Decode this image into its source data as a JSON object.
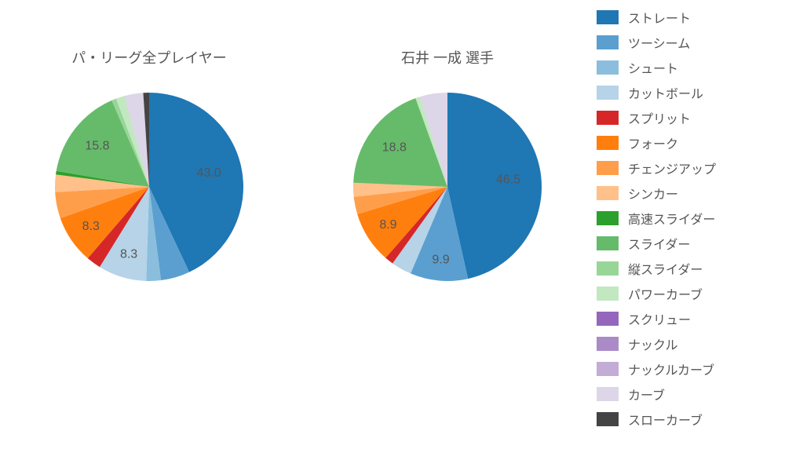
{
  "background_color": "#ffffff",
  "title_fontsize": 18,
  "title_color": "#555555",
  "label_fontsize": 16,
  "label_color": "#555555",
  "pie_radius": 120,
  "charts": [
    {
      "title": "パ・リーグ全プレイヤー",
      "slices": [
        {
          "category": "ストレート",
          "value": 43.0,
          "color": "#1f77b4",
          "show_label": true,
          "label_dist": 0.65
        },
        {
          "category": "ツーシーム",
          "value": 5.0,
          "color": "#5a9fcf",
          "show_label": false
        },
        {
          "category": "シュート",
          "value": 2.5,
          "color": "#8abedc",
          "show_label": false
        },
        {
          "category": "カットボール",
          "value": 8.3,
          "color": "#b6d3e8",
          "show_label": true,
          "label_dist": 0.75
        },
        {
          "category": "スプリット",
          "value": 2.5,
          "color": "#d62728",
          "show_label": false
        },
        {
          "category": "フォーク",
          "value": 8.3,
          "color": "#ff7f0e",
          "show_label": true,
          "label_dist": 0.75
        },
        {
          "category": "チェンジアップ",
          "value": 4.5,
          "color": "#ff9e4a",
          "show_label": false
        },
        {
          "category": "シンカー",
          "value": 3.0,
          "color": "#ffc08a",
          "show_label": false
        },
        {
          "category": "高速スライダー",
          "value": 0.6,
          "color": "#2ca02c",
          "show_label": false
        },
        {
          "category": "スライダー",
          "value": 15.8,
          "color": "#66bb6a",
          "show_label": true,
          "label_dist": 0.7
        },
        {
          "category": "縦スライダー",
          "value": 0.8,
          "color": "#98d698",
          "show_label": false
        },
        {
          "category": "パワーカーブ",
          "value": 1.5,
          "color": "#c1e8c1",
          "show_label": false
        },
        {
          "category": "カーブ",
          "value": 3.2,
          "color": "#ddd5e8",
          "show_label": false
        },
        {
          "category": "スローカーブ",
          "value": 1.0,
          "color": "#444444",
          "show_label": false
        }
      ]
    },
    {
      "title": "石井 一成  選手",
      "slices": [
        {
          "category": "ストレート",
          "value": 46.5,
          "color": "#1f77b4",
          "show_label": true,
          "label_dist": 0.65
        },
        {
          "category": "ツーシーム",
          "value": 9.9,
          "color": "#5a9fcf",
          "show_label": true,
          "label_dist": 0.78
        },
        {
          "category": "カットボール",
          "value": 3.5,
          "color": "#b6d3e8",
          "show_label": false
        },
        {
          "category": "スプリット",
          "value": 1.5,
          "color": "#d62728",
          "show_label": false
        },
        {
          "category": "フォーク",
          "value": 8.9,
          "color": "#ff7f0e",
          "show_label": true,
          "label_dist": 0.75
        },
        {
          "category": "チェンジアップ",
          "value": 3.0,
          "color": "#ff9e4a",
          "show_label": false
        },
        {
          "category": "シンカー",
          "value": 2.4,
          "color": "#ffc08a",
          "show_label": false
        },
        {
          "category": "スライダー",
          "value": 18.8,
          "color": "#66bb6a",
          "show_label": true,
          "label_dist": 0.7
        },
        {
          "category": "パワーカーブ",
          "value": 0.8,
          "color": "#c1e8c1",
          "show_label": false
        },
        {
          "category": "カーブ",
          "value": 4.7,
          "color": "#ddd5e8",
          "show_label": false
        }
      ]
    }
  ],
  "legend": {
    "items": [
      {
        "label": "ストレート",
        "color": "#1f77b4"
      },
      {
        "label": "ツーシーム",
        "color": "#5a9fcf"
      },
      {
        "label": "シュート",
        "color": "#8abedc"
      },
      {
        "label": "カットボール",
        "color": "#b6d3e8"
      },
      {
        "label": "スプリット",
        "color": "#d62728"
      },
      {
        "label": "フォーク",
        "color": "#ff7f0e"
      },
      {
        "label": "チェンジアップ",
        "color": "#ff9e4a"
      },
      {
        "label": "シンカー",
        "color": "#ffc08a"
      },
      {
        "label": "高速スライダー",
        "color": "#2ca02c"
      },
      {
        "label": "スライダー",
        "color": "#66bb6a"
      },
      {
        "label": "縦スライダー",
        "color": "#98d698"
      },
      {
        "label": "パワーカーブ",
        "color": "#c1e8c1"
      },
      {
        "label": "スクリュー",
        "color": "#9467bd"
      },
      {
        "label": "ナックル",
        "color": "#ab8bc7"
      },
      {
        "label": "ナックルカーブ",
        "color": "#c3acd6"
      },
      {
        "label": "カーブ",
        "color": "#ddd5e8"
      },
      {
        "label": "スローカーブ",
        "color": "#444444"
      }
    ]
  }
}
